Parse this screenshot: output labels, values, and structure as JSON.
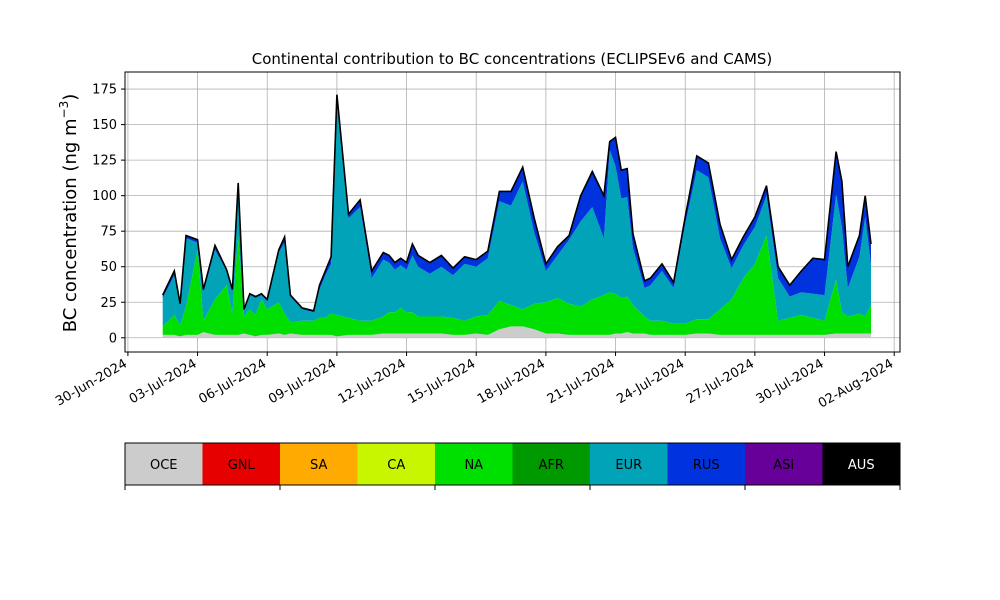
{
  "chart_data": {
    "type": "area",
    "stacked": true,
    "title": "Continental contribution to BC concentrations (ECLIPSEv6 and CAMS)",
    "ylabel": "BC concentration (ng m",
    "ylabel_sup": "−3",
    "ylabel_close": ")",
    "xlabel": "",
    "ylim": [
      -10,
      187
    ],
    "xlim": [
      "2024-06-29T21:00",
      "2024-08-02T06:00"
    ],
    "grid": true,
    "xticks": [
      "30-Jun-2024",
      "03-Jul-2024",
      "06-Jul-2024",
      "09-Jul-2024",
      "12-Jul-2024",
      "15-Jul-2024",
      "18-Jul-2024",
      "21-Jul-2024",
      "24-Jul-2024",
      "27-Jul-2024",
      "30-Jul-2024",
      "02-Aug-2024"
    ],
    "xtick_dates": [
      "2024-06-30",
      "2024-07-03",
      "2024-07-06",
      "2024-07-09",
      "2024-07-12",
      "2024-07-15",
      "2024-07-18",
      "2024-07-21",
      "2024-07-24",
      "2024-07-27",
      "2024-07-30",
      "2024-08-02"
    ],
    "yticks": [
      0,
      25,
      50,
      75,
      100,
      125,
      150,
      175
    ],
    "x": [
      "2024-07-01T12:00",
      "2024-07-02T00:00",
      "2024-07-02T06:00",
      "2024-07-02T12:00",
      "2024-07-03T00:00",
      "2024-07-03T06:00",
      "2024-07-03T18:00",
      "2024-07-04T06:00",
      "2024-07-04T12:00",
      "2024-07-04T18:00",
      "2024-07-05T00:00",
      "2024-07-05T06:00",
      "2024-07-05T12:00",
      "2024-07-05T18:00",
      "2024-07-06T00:00",
      "2024-07-06T12:00",
      "2024-07-06T18:00",
      "2024-07-07T00:00",
      "2024-07-07T12:00",
      "2024-07-08T00:00",
      "2024-07-08T06:00",
      "2024-07-08T12:00",
      "2024-07-08T18:00",
      "2024-07-09T00:00",
      "2024-07-09T12:00",
      "2024-07-10T00:00",
      "2024-07-10T12:00",
      "2024-07-11T00:00",
      "2024-07-11T06:00",
      "2024-07-11T12:00",
      "2024-07-11T18:00",
      "2024-07-12T00:00",
      "2024-07-12T06:00",
      "2024-07-12T12:00",
      "2024-07-13T00:00",
      "2024-07-13T12:00",
      "2024-07-14T00:00",
      "2024-07-14T12:00",
      "2024-07-15T00:00",
      "2024-07-15T12:00",
      "2024-07-16T00:00",
      "2024-07-16T12:00",
      "2024-07-17T00:00",
      "2024-07-17T12:00",
      "2024-07-18T00:00",
      "2024-07-18T12:00",
      "2024-07-19T00:00",
      "2024-07-19T12:00",
      "2024-07-20T00:00",
      "2024-07-20T12:00",
      "2024-07-20T18:00",
      "2024-07-21T00:00",
      "2024-07-21T06:00",
      "2024-07-21T12:00",
      "2024-07-21T18:00",
      "2024-07-22T06:00",
      "2024-07-22T12:00",
      "2024-07-23T00:00",
      "2024-07-23T12:00",
      "2024-07-24T00:00",
      "2024-07-24T12:00",
      "2024-07-25T00:00",
      "2024-07-25T12:00",
      "2024-07-26T00:00",
      "2024-07-26T12:00",
      "2024-07-27T00:00",
      "2024-07-27T12:00",
      "2024-07-28T00:00",
      "2024-07-28T12:00",
      "2024-07-29T00:00",
      "2024-07-29T12:00",
      "2024-07-30T00:00",
      "2024-07-30T12:00",
      "2024-07-30T18:00",
      "2024-07-31T00:00",
      "2024-07-31T12:00",
      "2024-07-31T18:00",
      "2024-08-01T00:00"
    ],
    "series": [
      {
        "name": "OCE",
        "color": "#cccccc",
        "values": [
          2,
          2,
          1,
          2,
          2,
          4,
          2,
          2,
          2,
          2,
          3,
          2,
          1,
          2,
          2,
          3,
          2,
          3,
          2,
          2,
          2,
          2,
          2,
          1,
          2,
          2,
          2,
          3,
          3,
          3,
          3,
          3,
          3,
          3,
          3,
          3,
          2,
          2,
          3,
          2,
          6,
          8,
          8,
          6,
          3,
          3,
          2,
          2,
          2,
          2,
          2,
          3,
          3,
          4,
          3,
          3,
          2,
          2,
          2,
          2,
          3,
          3,
          2,
          2,
          2,
          2,
          2,
          2,
          2,
          2,
          2,
          2,
          3,
          3,
          3,
          3,
          3,
          3
        ]
      },
      {
        "name": "GNL",
        "color": "#e60000",
        "values": [
          0,
          0,
          0,
          0,
          0,
          0,
          0,
          0,
          0,
          0,
          0,
          0,
          0,
          0,
          0,
          0,
          0,
          0,
          0,
          0,
          0,
          0,
          0,
          0,
          0,
          0,
          0,
          0,
          0,
          0,
          0,
          0,
          0,
          0,
          0,
          0,
          0,
          0,
          0,
          0,
          0,
          0,
          0,
          0,
          0,
          0,
          0,
          0,
          0,
          0,
          0,
          0,
          0,
          0,
          0,
          0,
          0,
          0,
          0,
          0,
          0,
          0,
          0,
          0,
          0,
          0,
          0,
          0,
          0,
          0,
          0,
          0,
          0,
          0,
          0,
          0,
          0,
          0
        ]
      },
      {
        "name": "SA",
        "color": "#ffaa00",
        "values": [
          0,
          0,
          0,
          0,
          0,
          0,
          0,
          0,
          0,
          0,
          0,
          0,
          0,
          0,
          0,
          0,
          0,
          0,
          0,
          0,
          0,
          0,
          0,
          0,
          0,
          0,
          0,
          0,
          0,
          0,
          0,
          0,
          0,
          0,
          0,
          0,
          0,
          0,
          0,
          0,
          0,
          0,
          0,
          0,
          0,
          0,
          0,
          0,
          0,
          0,
          0,
          0,
          0,
          0,
          0,
          0,
          0,
          0,
          0,
          0,
          0,
          0,
          0,
          0,
          0,
          0,
          0,
          0,
          0,
          0,
          0,
          0,
          0,
          0,
          0,
          0,
          0,
          0
        ]
      },
      {
        "name": "CA",
        "color": "#c8f500",
        "values": [
          0,
          0,
          0,
          0,
          0,
          0,
          0,
          0,
          0,
          0,
          0,
          0,
          0,
          0,
          0,
          0,
          0,
          0,
          0,
          0,
          0,
          0,
          0,
          0,
          0,
          0,
          0,
          0,
          0,
          0,
          0,
          0,
          0,
          0,
          0,
          0,
          0,
          0,
          0,
          0,
          0,
          0,
          0,
          0,
          0,
          0,
          0,
          0,
          0,
          0,
          0,
          0,
          0,
          0,
          0,
          0,
          0,
          0,
          0,
          0,
          0,
          0,
          0,
          0,
          0,
          0,
          0,
          0,
          0,
          0,
          0,
          0,
          0,
          0,
          0,
          0,
          0,
          0
        ]
      },
      {
        "name": "NA",
        "color": "#00e000",
        "values": [
          6,
          14,
          8,
          20,
          60,
          8,
          25,
          35,
          15,
          70,
          12,
          18,
          15,
          25,
          18,
          22,
          15,
          8,
          10,
          10,
          12,
          12,
          15,
          15,
          12,
          10,
          10,
          12,
          15,
          15,
          18,
          15,
          15,
          12,
          12,
          12,
          12,
          10,
          12,
          14,
          20,
          15,
          12,
          18,
          22,
          25,
          22,
          20,
          25,
          28,
          30,
          28,
          25,
          25,
          20,
          12,
          10,
          10,
          8,
          8,
          10,
          10,
          18,
          25,
          40,
          50,
          70,
          10,
          12,
          14,
          12,
          10,
          38,
          15,
          12,
          14,
          12,
          20
        ]
      },
      {
        "name": "AFR",
        "color": "#009900",
        "values": [
          0,
          0,
          0,
          0,
          0,
          0,
          0,
          0,
          0,
          0,
          0,
          0,
          0,
          0,
          0,
          0,
          0,
          0,
          0,
          0,
          0,
          0,
          0,
          0,
          0,
          0,
          0,
          0,
          0,
          0,
          0,
          0,
          0,
          0,
          0,
          0,
          0,
          0,
          0,
          0,
          0,
          0,
          0,
          0,
          0,
          0,
          0,
          0,
          0,
          0,
          0,
          0,
          0,
          0,
          0,
          0,
          0,
          0,
          0,
          0,
          0,
          0,
          0,
          0,
          0,
          0,
          0,
          0,
          0,
          0,
          0,
          0,
          0,
          0,
          0,
          0,
          0,
          0
        ]
      },
      {
        "name": "EUR",
        "color": "#00a3b8",
        "values": [
          20,
          28,
          14,
          48,
          5,
          20,
          35,
          10,
          16,
          35,
          4,
          10,
          12,
          3,
          6,
          35,
          50,
          18,
          8,
          6,
          20,
          30,
          35,
          150,
          70,
          80,
          30,
          40,
          35,
          30,
          30,
          30,
          40,
          35,
          30,
          35,
          30,
          40,
          35,
          40,
          70,
          70,
          90,
          50,
          22,
          30,
          45,
          60,
          65,
          40,
          100,
          90,
          70,
          70,
          40,
          20,
          25,
          35,
          25,
          70,
          105,
          100,
          50,
          22,
          23,
          26,
          28,
          30,
          15,
          16,
          17,
          18,
          60,
          60,
          20,
          40,
          70,
          28
        ]
      },
      {
        "name": "RUS",
        "color": "#0033dd",
        "values": [
          2,
          3,
          1,
          2,
          2,
          2,
          3,
          1,
          1,
          2,
          1,
          1,
          1,
          1,
          1,
          2,
          4,
          1,
          1,
          1,
          3,
          3,
          5,
          5,
          3,
          5,
          5,
          5,
          5,
          5,
          5,
          5,
          8,
          8,
          8,
          8,
          5,
          5,
          5,
          5,
          7,
          10,
          10,
          10,
          5,
          6,
          3,
          18,
          25,
          30,
          6,
          20,
          20,
          20,
          10,
          5,
          5,
          5,
          4,
          5,
          10,
          10,
          10,
          6,
          6,
          7,
          7,
          8,
          8,
          15,
          25,
          25,
          30,
          32,
          15,
          15,
          15,
          15
        ]
      },
      {
        "name": "ASI",
        "color": "#660099",
        "values": [
          0,
          0,
          0,
          0,
          0,
          0,
          0,
          0,
          0,
          0,
          0,
          0,
          0,
          0,
          0,
          0,
          0,
          0,
          0,
          0,
          0,
          0,
          0,
          0,
          0,
          0,
          0,
          0,
          0,
          0,
          0,
          0,
          0,
          0,
          0,
          0,
          0,
          0,
          0,
          0,
          0,
          0,
          0,
          0,
          0,
          0,
          0,
          0,
          0,
          0,
          0,
          0,
          0,
          0,
          0,
          0,
          0,
          0,
          0,
          0,
          0,
          0,
          0,
          0,
          0,
          0,
          0,
          0,
          0,
          0,
          0,
          0,
          0,
          0,
          0,
          0,
          0,
          0
        ]
      },
      {
        "name": "AUS",
        "color": "#000000",
        "values": [
          0,
          0,
          0,
          0,
          0,
          0,
          0,
          0,
          0,
          0,
          0,
          0,
          0,
          0,
          0,
          0,
          0,
          0,
          0,
          0,
          0,
          0,
          0,
          0,
          0,
          0,
          0,
          0,
          0,
          0,
          0,
          0,
          0,
          0,
          0,
          0,
          0,
          0,
          0,
          0,
          0,
          0,
          0,
          0,
          0,
          0,
          0,
          0,
          0,
          0,
          0,
          0,
          0,
          0,
          0,
          0,
          0,
          0,
          0,
          0,
          0,
          0,
          0,
          0,
          0,
          0,
          0,
          0,
          0,
          0,
          0,
          0,
          0,
          0,
          0,
          0,
          0,
          0
        ]
      }
    ],
    "legend": {
      "placement": "bottom",
      "entries": [
        {
          "label": "OCE",
          "color": "#cccccc"
        },
        {
          "label": "GNL",
          "color": "#e60000"
        },
        {
          "label": "SA",
          "color": "#ffaa00"
        },
        {
          "label": "CA",
          "color": "#c8f500"
        },
        {
          "label": "NA",
          "color": "#00e000"
        },
        {
          "label": "AFR",
          "color": "#009900"
        },
        {
          "label": "EUR",
          "color": "#00a3b8"
        },
        {
          "label": "RUS",
          "color": "#0033dd"
        },
        {
          "label": "ASI",
          "color": "#660099"
        },
        {
          "label": "AUS",
          "color": "#000000"
        }
      ]
    }
  }
}
